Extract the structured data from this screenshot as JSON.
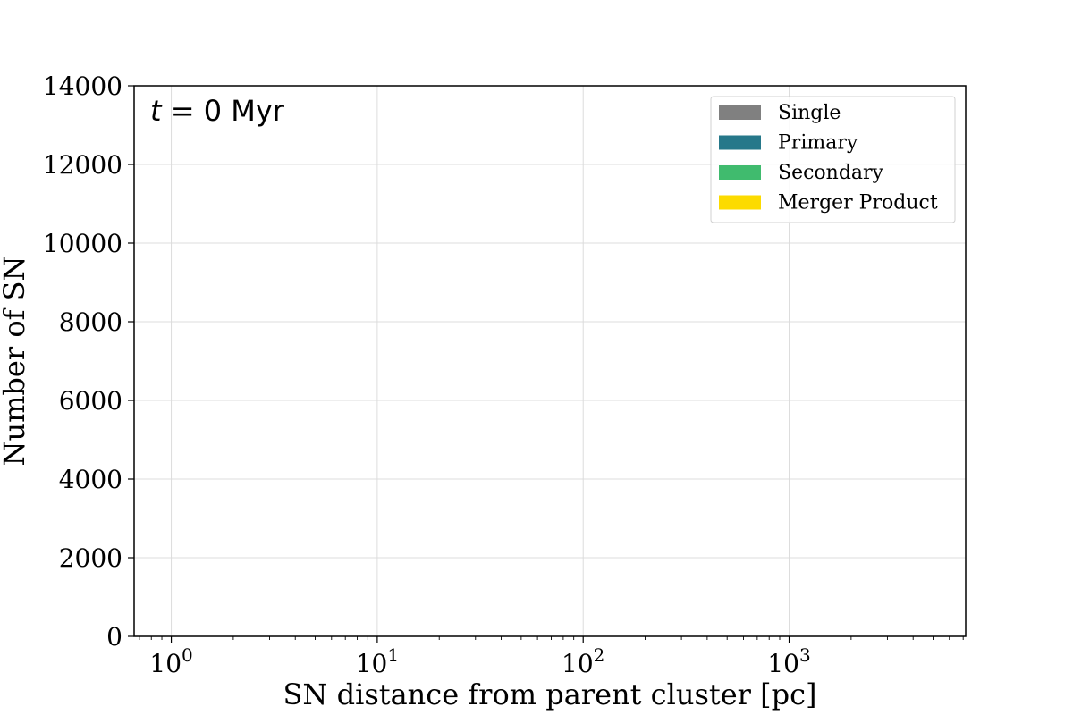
{
  "chart_data": {
    "type": "bar",
    "x_scale": "log",
    "x_ticks": [
      {
        "value": 1,
        "base": "10",
        "exp": "0"
      },
      {
        "value": 10,
        "base": "10",
        "exp": "1"
      },
      {
        "value": 100,
        "base": "10",
        "exp": "2"
      },
      {
        "value": 1000,
        "base": "10",
        "exp": "3"
      }
    ],
    "xlim": [
      0.66,
      7200
    ],
    "y_ticks": [
      "0",
      "2000",
      "4000",
      "6000",
      "8000",
      "10000",
      "12000",
      "14000"
    ],
    "ylim": [
      0,
      14000
    ],
    "xlabel": "SN distance from parent cluster [pc]",
    "ylabel": "Number of SN",
    "annotation": {
      "var": "t",
      "eq": " = 0 ",
      "unit": "Myr"
    },
    "grid": true,
    "legend_position": "top-right",
    "series": [
      {
        "name": "Single",
        "color": "#808080",
        "values": []
      },
      {
        "name": "Primary",
        "color": "#26788a",
        "values": []
      },
      {
        "name": "Secondary",
        "color": "#40bb6e",
        "values": []
      },
      {
        "name": "Merger Product",
        "color": "#fcdb00",
        "values": []
      }
    ]
  }
}
